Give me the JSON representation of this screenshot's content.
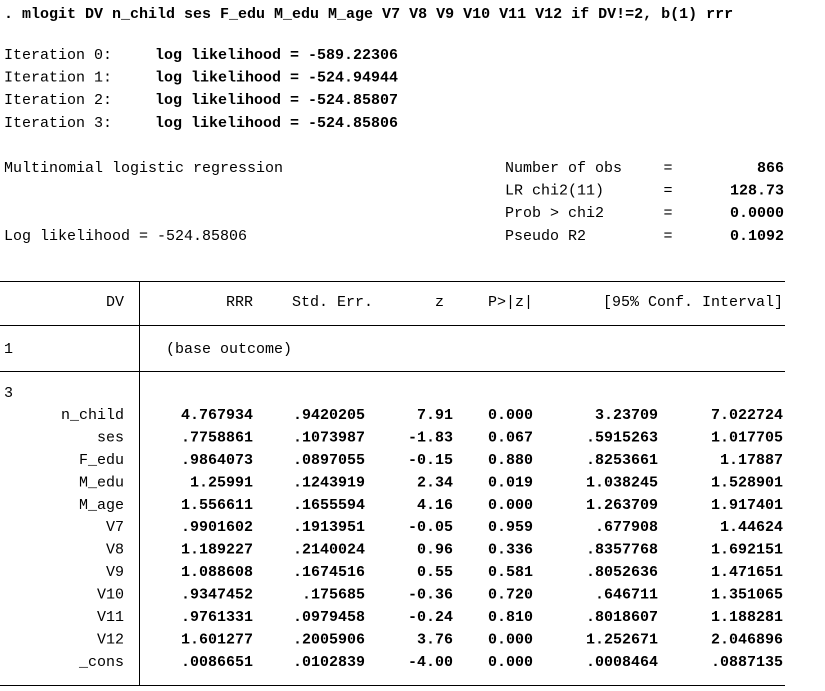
{
  "command": ". mlogit DV n_child ses F_edu M_edu M_age V7 V8 V9 V10 V11 V12 if DV!=2, b(1) rrr",
  "iterations": [
    {
      "label": "Iteration 0:",
      "text": "log likelihood = -589.22306"
    },
    {
      "label": "Iteration 1:",
      "text": "log likelihood = -524.94944"
    },
    {
      "label": "Iteration 2:",
      "text": "log likelihood = -524.85807"
    },
    {
      "label": "Iteration 3:",
      "text": "log likelihood = -524.85806"
    }
  ],
  "model_title": "Multinomial logistic regression",
  "log_likelihood": "Log likelihood = -524.85806",
  "stats": [
    {
      "label": "Number of obs",
      "sign": "=",
      "value": "866"
    },
    {
      "label": "LR chi2(11)",
      "sign": "=",
      "value": "128.73"
    },
    {
      "label": "Prob > chi2",
      "sign": "=",
      "value": "0.0000"
    },
    {
      "label": "Pseudo R2",
      "sign": "=",
      "value": "0.1092"
    }
  ],
  "table": {
    "header": [
      "DV",
      "RRR",
      "Std. Err.",
      "z",
      "P>|z|",
      "[95% Conf. Interval]"
    ],
    "base_group": "1",
    "base_note": "(base outcome)",
    "group": "3",
    "rows": [
      [
        "n_child",
        "4.767934",
        ".9420205",
        "7.91",
        "0.000",
        "3.23709",
        "7.022724"
      ],
      [
        "ses",
        ".7758861",
        ".1073987",
        "-1.83",
        "0.067",
        ".5915263",
        "1.017705"
      ],
      [
        "F_edu",
        ".9864073",
        ".0897055",
        "-0.15",
        "0.880",
        ".8253661",
        "1.17887"
      ],
      [
        "M_edu",
        "1.25991",
        ".1243919",
        "2.34",
        "0.019",
        "1.038245",
        "1.528901"
      ],
      [
        "M_age",
        "1.556611",
        ".1655594",
        "4.16",
        "0.000",
        "1.263709",
        "1.917401"
      ],
      [
        "V7",
        ".9901602",
        ".1913951",
        "-0.05",
        "0.959",
        ".677908",
        "1.44624"
      ],
      [
        "V8",
        "1.189227",
        ".2140024",
        "0.96",
        "0.336",
        ".8357768",
        "1.692151"
      ],
      [
        "V9",
        "1.088608",
        ".1674516",
        "0.55",
        "0.581",
        ".8052636",
        "1.471651"
      ],
      [
        "V10",
        ".9347452",
        ".175685",
        "-0.36",
        "0.720",
        ".646711",
        "1.351065"
      ],
      [
        "V11",
        ".9761331",
        ".0979458",
        "-0.24",
        "0.810",
        ".8018607",
        "1.188281"
      ],
      [
        "V12",
        "1.601277",
        ".2005906",
        "3.76",
        "0.000",
        "1.252671",
        "2.046896"
      ],
      [
        "_cons",
        ".0086651",
        ".0102839",
        "-4.00",
        "0.000",
        ".0008464",
        ".0887135"
      ]
    ]
  }
}
